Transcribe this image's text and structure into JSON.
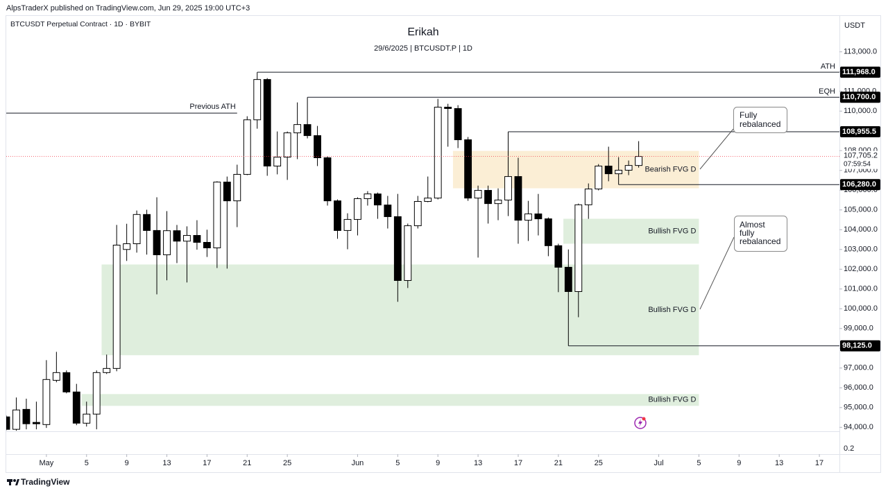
{
  "header": {
    "published": "AlpsTraderX published on TradingView.com, Jun 29, 2025 19:00 UTC+3",
    "symbol": "BTCUSDT Perpetual Contract · 1D · BYBIT",
    "currency": "USDT",
    "brand": "TradingView"
  },
  "chart_data": {
    "type": "candlestick",
    "title": "Erikah",
    "subtitle": "29/6/2025 | BTCUSDT.P | 1D",
    "up_color": "#ffffff",
    "down_color": "#000000",
    "x": [
      "2025-04-27",
      "2025-04-28",
      "2025-04-29",
      "2025-04-30",
      "2025-05-01",
      "2025-05-02",
      "2025-05-03",
      "2025-05-04",
      "2025-05-05",
      "2025-05-06",
      "2025-05-07",
      "2025-05-08",
      "2025-05-09",
      "2025-05-10",
      "2025-05-11",
      "2025-05-12",
      "2025-05-13",
      "2025-05-14",
      "2025-05-15",
      "2025-05-16",
      "2025-05-17",
      "2025-05-18",
      "2025-05-19",
      "2025-05-20",
      "2025-05-21",
      "2025-05-22",
      "2025-05-23",
      "2025-05-24",
      "2025-05-25",
      "2025-05-26",
      "2025-05-27",
      "2025-05-28",
      "2025-05-29",
      "2025-05-30",
      "2025-05-31",
      "2025-06-01",
      "2025-06-02",
      "2025-06-03",
      "2025-06-04",
      "2025-06-05",
      "2025-06-06",
      "2025-06-07",
      "2025-06-08",
      "2025-06-09",
      "2025-06-10",
      "2025-06-11",
      "2025-06-12",
      "2025-06-13",
      "2025-06-14",
      "2025-06-15",
      "2025-06-16",
      "2025-06-17",
      "2025-06-18",
      "2025-06-19",
      "2025-06-20",
      "2025-06-21",
      "2025-06-22",
      "2025-06-23",
      "2025-06-24",
      "2025-06-25",
      "2025-06-26",
      "2025-06-27",
      "2025-06-28",
      "2025-06-29"
    ],
    "open": [
      94529,
      93900,
      94910,
      94250,
      94140,
      96380,
      96770,
      95790,
      94210,
      94670,
      96770,
      96980,
      103000,
      103290,
      104770,
      103960,
      102730,
      103950,
      103420,
      103710,
      103360,
      103080,
      106410,
      105460,
      106800,
      109560,
      111600,
      107220,
      107670,
      108900,
      109320,
      108760,
      107640,
      105460,
      103960,
      104520,
      105570,
      105810,
      105250,
      104660,
      101430,
      104200,
      105430,
      105600,
      110200,
      110130,
      108550,
      105600,
      105990,
      105320,
      105500,
      106690,
      104480,
      104800,
      104550,
      103190,
      102100,
      100870,
      105260,
      106060,
      107220,
      106830,
      107010,
      107250
    ],
    "high": [
      94600,
      95510,
      95450,
      95300,
      97400,
      97820,
      96880,
      96200,
      95300,
      96880,
      97680,
      104240,
      104300,
      104970,
      105010,
      105640,
      104940,
      104240,
      104170,
      104480,
      104000,
      106450,
      106690,
      107290,
      109740,
      111968,
      111670,
      108970,
      108970,
      110440,
      110700,
      109250,
      107710,
      105530,
      104830,
      105640,
      105950,
      105880,
      105710,
      105810,
      104310,
      105710,
      106690,
      110620,
      110370,
      110300,
      108690,
      106230,
      106230,
      106090,
      108955.5,
      107640,
      105460,
      105810,
      104620,
      103290,
      103000,
      105320,
      106340,
      107320,
      108200,
      107670,
      107500,
      108480
    ],
    "low": [
      93850,
      93830,
      93900,
      93900,
      93970,
      96280,
      95720,
      94110,
      94040,
      93900,
      96700,
      96840,
      102420,
      102840,
      102740,
      100730,
      101440,
      102310,
      101330,
      102990,
      102620,
      102060,
      102030,
      104130,
      106760,
      109110,
      106730,
      106800,
      106520,
      107570,
      108620,
      107220,
      105220,
      103540,
      103010,
      103710,
      105220,
      104550,
      104060,
      100350,
      101050,
      104060,
      105390,
      105530,
      108200,
      108130,
      105460,
      102590,
      104310,
      104480,
      104690,
      103290,
      103430,
      103710,
      102660,
      100840,
      98125,
      99570,
      104550,
      105990,
      106450,
      106280,
      106760,
      107140
    ],
    "close": [
      93898,
      94880,
      94180,
      94180,
      96420,
      96770,
      95790,
      94210,
      94670,
      96770,
      96980,
      103220,
      103290,
      104770,
      103960,
      102730,
      103950,
      103420,
      103710,
      103360,
      103080,
      106410,
      105460,
      106800,
      109560,
      111600,
      107220,
      107670,
      108900,
      109320,
      108760,
      107640,
      105460,
      103960,
      104520,
      105570,
      105810,
      105250,
      104660,
      101430,
      104200,
      105430,
      105600,
      110200,
      110130,
      108550,
      105600,
      105990,
      105320,
      105500,
      106690,
      104480,
      104800,
      104550,
      103190,
      102100,
      100870,
      105260,
      106060,
      107220,
      106830,
      107010,
      107250,
      107705.2
    ],
    "xlim": [
      "2025-04-27",
      "2025-07-19"
    ],
    "xticks": [
      {
        "value": "2025-05-01",
        "label": "May"
      },
      {
        "value": "2025-05-05",
        "label": "5"
      },
      {
        "value": "2025-05-09",
        "label": "9"
      },
      {
        "value": "2025-05-13",
        "label": "13"
      },
      {
        "value": "2025-05-17",
        "label": "17"
      },
      {
        "value": "2025-05-21",
        "label": "21"
      },
      {
        "value": "2025-05-25",
        "label": "25"
      },
      {
        "value": "2025-06-01",
        "label": "Jun"
      },
      {
        "value": "2025-06-05",
        "label": "5"
      },
      {
        "value": "2025-06-09",
        "label": "9"
      },
      {
        "value": "2025-06-13",
        "label": "13"
      },
      {
        "value": "2025-06-17",
        "label": "17"
      },
      {
        "value": "2025-06-21",
        "label": "21"
      },
      {
        "value": "2025-06-25",
        "label": "25"
      },
      {
        "value": "2025-07-01",
        "label": "Jul"
      },
      {
        "value": "2025-07-05",
        "label": "5"
      },
      {
        "value": "2025-07-09",
        "label": "9"
      },
      {
        "value": "2025-07-13",
        "label": "13"
      },
      {
        "value": "2025-07-17",
        "label": "17"
      }
    ],
    "ylim": [
      93800,
      114850
    ],
    "yticks": [
      {
        "value": 94000,
        "label": "94,000.0"
      },
      {
        "value": 95000,
        "label": "95,000.0"
      },
      {
        "value": 96000,
        "label": "96,000.0"
      },
      {
        "value": 97000,
        "label": "97,000.0"
      },
      {
        "value": 98000,
        "label": "98,000.0"
      },
      {
        "value": 99000,
        "label": "99,000.0"
      },
      {
        "value": 100000,
        "label": "100,000.0"
      },
      {
        "value": 101000,
        "label": "101,000.0"
      },
      {
        "value": 102000,
        "label": "102,000.0"
      },
      {
        "value": 103000,
        "label": "103,000.0"
      },
      {
        "value": 104000,
        "label": "104,000.0"
      },
      {
        "value": 105000,
        "label": "105,000.0"
      },
      {
        "value": 106000,
        "label": "106,000.0"
      },
      {
        "value": 107000,
        "label": "107,000.0"
      },
      {
        "value": 108000,
        "label": "108,000.0"
      },
      {
        "value": 109000,
        "label": "109,000.0"
      },
      {
        "value": 110000,
        "label": "110,000.0"
      },
      {
        "value": 111000,
        "label": "111,000.0"
      },
      {
        "value": 112000,
        "label": "112,000.0"
      },
      {
        "value": 113000,
        "label": "113,000.0"
      }
    ],
    "grid": false,
    "volume_pane_label": "0.2",
    "zones": [
      {
        "label": "Bearish FVG D",
        "top": 107988,
        "bottom": 106095,
        "start": "2025-06-11",
        "end": "2025-07-05",
        "color": "#fbeed5"
      },
      {
        "label": "Bullish FVG D",
        "top": 104553,
        "bottom": 103291,
        "start": "2025-06-22",
        "end": "2025-07-05",
        "color": "#dfeedd"
      },
      {
        "label": "Bullish FVG D",
        "top": 102240,
        "bottom": 97649,
        "start": "2025-05-07",
        "end": "2025-07-05",
        "color": "#dfeedd"
      },
      {
        "label": "Bullish FVG D",
        "top": 95683,
        "bottom": 95087,
        "start": "2025-05-05",
        "end": "2025-07-05",
        "color": "#dfeedd"
      }
    ],
    "levels": [
      {
        "label": "ATH",
        "value": 111968,
        "value_label": "111,968.0",
        "start": "2025-05-22"
      },
      {
        "label": "EQH",
        "value": 110700,
        "value_label": "110,700.0",
        "start": "2025-05-27"
      },
      {
        "value": 108955.5,
        "value_label": "108,955.5",
        "start": "2025-06-16"
      },
      {
        "value": 106280,
        "value_label": "106,280.0",
        "start": "2025-06-27"
      },
      {
        "value": 98125,
        "value_label": "98,125.0",
        "start": "2025-06-22"
      }
    ],
    "previous_ath": {
      "label": "Previous ATH",
      "value": 109900,
      "start": "2025-04-27",
      "end": "2025-05-20"
    },
    "last_price": {
      "value": 107705.2,
      "label": "107,705.2",
      "countdown": "07:59:54"
    },
    "callouts": [
      {
        "lines": [
          "Fully",
          "rebalanced"
        ]
      },
      {
        "lines": [
          "Almost",
          "fully",
          "rebalanced"
        ]
      }
    ]
  }
}
